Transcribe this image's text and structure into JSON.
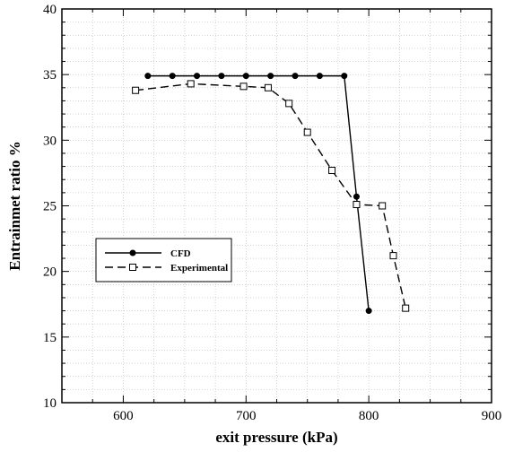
{
  "chart_data": {
    "type": "line",
    "title": "",
    "xlabel": "exit pressure (kPa)",
    "ylabel": "Entrainmet ratio %",
    "xlim": [
      550,
      900
    ],
    "ylim": [
      10,
      40
    ],
    "xticks": [
      600,
      700,
      800,
      900
    ],
    "yticks": [
      10,
      15,
      20,
      25,
      30,
      35,
      40
    ],
    "x_tick_labels": [
      "600",
      "700",
      "800",
      "900"
    ],
    "y_tick_labels": [
      "10",
      "15",
      "20",
      "25",
      "30",
      "35",
      "40"
    ],
    "grid": true,
    "legend_position": "lower-left",
    "series": [
      {
        "name": "CFD",
        "line_style": "solid",
        "marker": "filled-circle",
        "color": "#000000",
        "x": [
          620,
          640,
          660,
          680,
          700,
          720,
          740,
          760,
          780,
          790,
          800
        ],
        "y": [
          34.9,
          34.9,
          34.9,
          34.9,
          34.9,
          34.9,
          34.9,
          34.9,
          34.9,
          25.7,
          17.0
        ]
      },
      {
        "name": "Experimental",
        "line_style": "dashed",
        "marker": "open-square",
        "color": "#000000",
        "x": [
          610,
          655,
          698,
          718,
          735,
          750,
          770,
          790,
          811,
          820,
          830
        ],
        "y": [
          33.8,
          34.3,
          34.1,
          34.0,
          32.8,
          30.6,
          27.7,
          25.1,
          25.0,
          21.2,
          17.2
        ]
      }
    ]
  }
}
